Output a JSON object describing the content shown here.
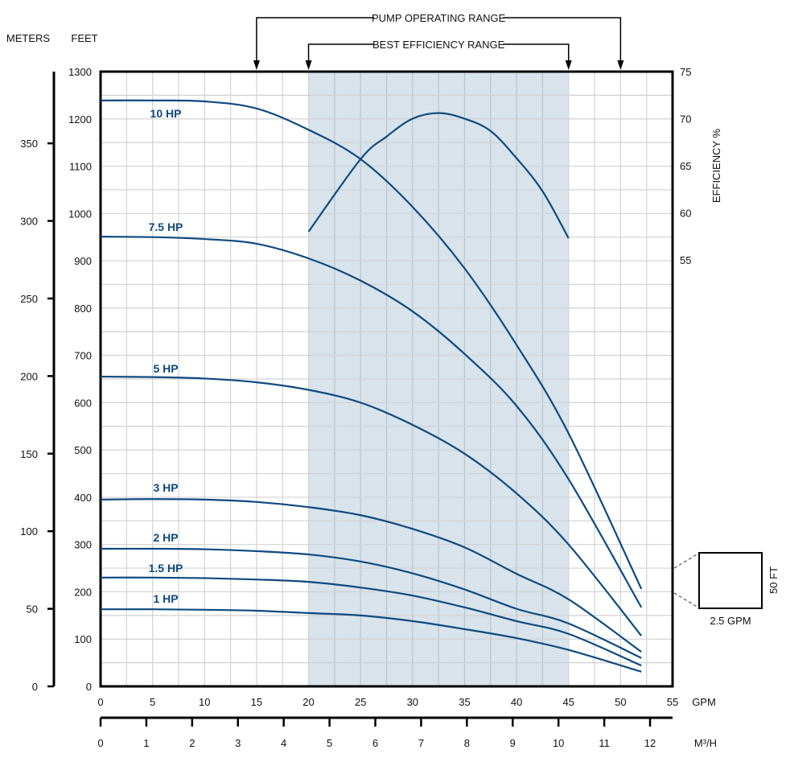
{
  "chart_data": {
    "type": "line",
    "title": "",
    "annotations": {
      "pump_operating_range": {
        "label": "PUMP OPERATING RANGE",
        "range_gpm": [
          15,
          50
        ]
      },
      "best_efficiency_range": {
        "label": "BEST EFFICIENCY RANGE",
        "range_gpm": [
          20,
          45
        ]
      }
    },
    "axes": {
      "meters": {
        "label": "METERS",
        "ticks": [
          "0",
          "50",
          "100",
          "150",
          "200",
          "250",
          "300",
          "350"
        ],
        "range": [
          0,
          396
        ]
      },
      "feet": {
        "label": "FEET",
        "ticks": [
          "0",
          "100",
          "200",
          "300",
          "400",
          "500",
          "600",
          "700",
          "800",
          "900",
          "1000",
          "1100",
          "1200",
          "1300"
        ],
        "range": [
          0,
          1300
        ]
      },
      "efficiency": {
        "label": "EFFICIENCY %",
        "ticks": [
          "55",
          "60",
          "65",
          "70",
          "75"
        ],
        "range": [
          55,
          75
        ]
      },
      "gpm": {
        "label": "GPM",
        "ticks": [
          "0",
          "5",
          "10",
          "15",
          "20",
          "25",
          "30",
          "35",
          "40",
          "45",
          "50",
          "55"
        ],
        "range": [
          0,
          55
        ]
      },
      "m3h": {
        "label": "M³/H",
        "ticks": [
          "0",
          "1",
          "2",
          "3",
          "4",
          "5",
          "6",
          "7",
          "8",
          "9",
          "10",
          "11",
          "12"
        ]
      }
    },
    "grid": true,
    "series": [
      {
        "name": "10 HP",
        "axis": "feet",
        "x": [
          0,
          5,
          10,
          15,
          20,
          25,
          30,
          35,
          40,
          45,
          52
        ],
        "y": [
          1239,
          1239,
          1237,
          1222,
          1177,
          1115,
          1014,
          884,
          722,
          535,
          206
        ]
      },
      {
        "name": "7.5 HP",
        "axis": "feet",
        "x": [
          0,
          5,
          10,
          15,
          20,
          25,
          30,
          35,
          40,
          45,
          52
        ],
        "y": [
          951,
          950,
          946,
          936,
          905,
          858,
          793,
          703,
          593,
          438,
          167
        ]
      },
      {
        "name": "5 HP",
        "axis": "feet",
        "x": [
          0,
          5,
          10,
          15,
          20,
          25,
          30,
          35,
          40,
          45,
          52
        ],
        "y": [
          655,
          654,
          651,
          643,
          627,
          600,
          553,
          492,
          408,
          300,
          107
        ]
      },
      {
        "name": "3 HP",
        "axis": "feet",
        "x": [
          0,
          5,
          10,
          15,
          20,
          25,
          30,
          35,
          40,
          45,
          52
        ],
        "y": [
          395,
          396,
          395,
          390,
          379,
          362,
          333,
          294,
          238,
          184,
          73
        ]
      },
      {
        "name": "2 HP",
        "axis": "feet",
        "x": [
          0,
          5,
          10,
          15,
          20,
          25,
          30,
          35,
          40,
          45,
          52
        ],
        "y": [
          291,
          291,
          290,
          286,
          279,
          264,
          239,
          205,
          164,
          133,
          60
        ]
      },
      {
        "name": "1.5 HP",
        "axis": "feet",
        "x": [
          0,
          5,
          10,
          15,
          20,
          25,
          30,
          35,
          40,
          45,
          52
        ],
        "y": [
          230,
          230,
          229,
          226,
          221,
          209,
          192,
          167,
          138,
          111,
          44
        ]
      },
      {
        "name": "1 HP",
        "axis": "feet",
        "x": [
          0,
          5,
          10,
          15,
          20,
          25,
          30,
          35,
          40,
          45,
          52
        ],
        "y": [
          163,
          163,
          162,
          160,
          155,
          150,
          138,
          121,
          102,
          77,
          31
        ]
      },
      {
        "name": "Efficiency",
        "axis": "efficiency",
        "x": [
          20,
          25,
          27.5,
          30,
          32.5,
          35,
          37.5,
          40,
          42.5,
          45
        ],
        "y": [
          58,
          65.7,
          68.1,
          70,
          70.6,
          70,
          68.7,
          65.8,
          62.3,
          57.3
        ]
      }
    ],
    "scale_key": {
      "width_label": "2.5 GPM",
      "height_label": "50 FT"
    },
    "colors": {
      "curve": "#0d4a80",
      "shade": "#d8e3ec",
      "grid": "#d2d2d2"
    }
  }
}
